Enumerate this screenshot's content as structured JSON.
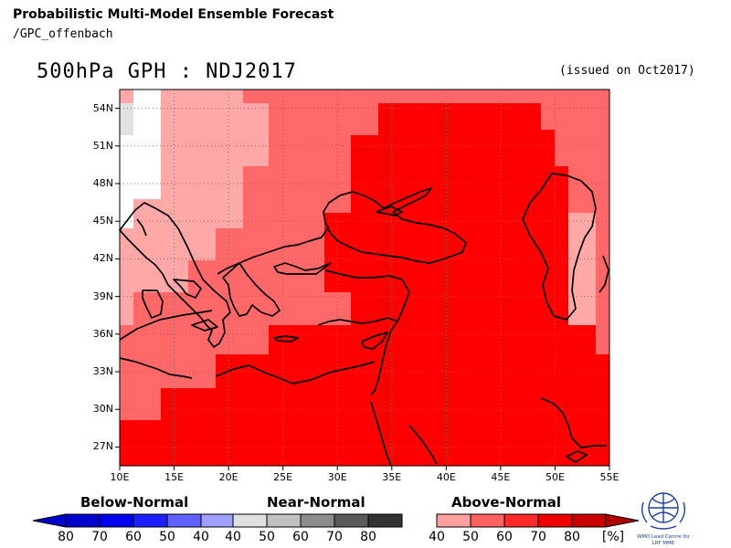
{
  "header": {
    "title": "Probabilistic Multi-Model Ensemble Forecast",
    "subtitle": "/GPC_offenbach",
    "map_title": "500hPa GPH : NDJ2017",
    "issued": "(issued on Oct2017)"
  },
  "map": {
    "lat_labels": [
      "54N",
      "51N",
      "48N",
      "45N",
      "42N",
      "39N",
      "36N",
      "33N",
      "30N",
      "27N"
    ],
    "lon_labels": [
      "10E",
      "15E",
      "20E",
      "25E",
      "30E",
      "35E",
      "40E",
      "45E",
      "50E",
      "55E"
    ],
    "lat_range": [
      25.5,
      55.5
    ],
    "lon_range": [
      10,
      55
    ],
    "grid": "dotted"
  },
  "legend": {
    "groups": [
      {
        "name": "Below-Normal",
        "values": [
          "80",
          "70",
          "60",
          "50",
          "40"
        ],
        "colors": [
          "#0000cc",
          "#0000ee",
          "#1e1eff",
          "#6060ff",
          "#a0a0ff"
        ]
      },
      {
        "name": "Near-Normal",
        "values": [
          "40",
          "50",
          "60",
          "70",
          "80"
        ],
        "colors": [
          "#e0e0e0",
          "#c0c0c0",
          "#8c8c8c",
          "#5a5a5a",
          "#323232"
        ]
      },
      {
        "name": "Above-Normal",
        "values": [
          "40",
          "50",
          "60",
          "70",
          "80"
        ],
        "colors": [
          "#ffa0a0",
          "#ff6060",
          "#ff2828",
          "#ee0000",
          "#c80000"
        ]
      }
    ],
    "unit": "[%]"
  },
  "colors": {
    "above_40": "#ffa8a8",
    "above_50": "#ff6868",
    "above_60": "#ff0000",
    "near": "#e2e2e2",
    "white": "#ffffff"
  },
  "logo": {
    "line1": "WMO Lead Centre for",
    "line2": "LRF MME"
  }
}
